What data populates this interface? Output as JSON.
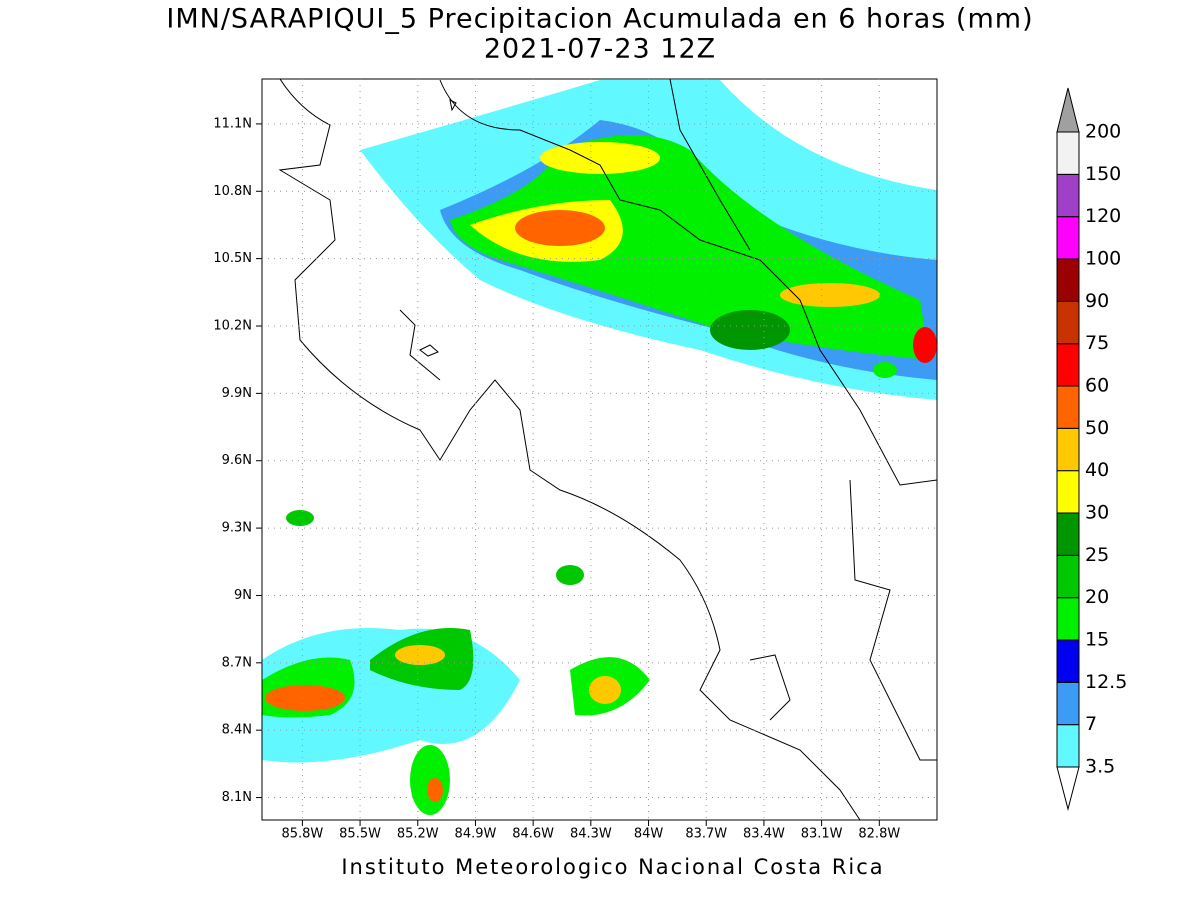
{
  "map": {
    "title": "IMN/SARAPIQUI_5 Precipitacion Acumulada en 6 horas (mm)",
    "subtitle": "2021-07-23 12Z",
    "xlim": [
      -86.01,
      -82.5
    ],
    "ylim": [
      8.0,
      11.3
    ],
    "xticks": [
      {
        "value": -85.8,
        "label": "85.8W"
      },
      {
        "value": -85.5,
        "label": "85.5W"
      },
      {
        "value": -85.2,
        "label": "85.2W"
      },
      {
        "value": -84.9,
        "label": "84.9W"
      },
      {
        "value": -84.6,
        "label": "84.6W"
      },
      {
        "value": -84.3,
        "label": "84.3W"
      },
      {
        "value": -84.0,
        "label": "84W"
      },
      {
        "value": -83.7,
        "label": "83.7W"
      },
      {
        "value": -83.4,
        "label": "83.4W"
      },
      {
        "value": -83.1,
        "label": "83.1W"
      },
      {
        "value": -82.8,
        "label": "82.8W"
      }
    ],
    "yticks": [
      {
        "value": 8.1,
        "label": "8.1N"
      },
      {
        "value": 8.4,
        "label": "8.4N"
      },
      {
        "value": 8.7,
        "label": "8.7N"
      },
      {
        "value": 9.0,
        "label": "9N"
      },
      {
        "value": 9.3,
        "label": "9.3N"
      },
      {
        "value": 9.6,
        "label": "9.6N"
      },
      {
        "value": 9.9,
        "label": "9.9N"
      },
      {
        "value": 10.2,
        "label": "10.2N"
      },
      {
        "value": 10.5,
        "label": "10.5N"
      },
      {
        "value": 10.8,
        "label": "10.8N"
      },
      {
        "value": 11.1,
        "label": "11.1N"
      }
    ],
    "grid": true,
    "footer": "Instituto Meteorologico Nacional Costa Rica"
  },
  "colorbar": {
    "levels": [
      3.5,
      7,
      12.5,
      15,
      20,
      25,
      30,
      40,
      50,
      60,
      75,
      90,
      100,
      120,
      150,
      200
    ],
    "colors": [
      "#62f8ff",
      "#3c9bf5",
      "#0000f0",
      "#00f000",
      "#00c800",
      "#009600",
      "#ffff00",
      "#ffc800",
      "#ff6400",
      "#ff0000",
      "#c83200",
      "#9b0000",
      "#ff00ff",
      "#a040c8",
      "#f2f2f2"
    ],
    "under_color": "#ffffff",
    "over_color": "#a0a0a0"
  }
}
